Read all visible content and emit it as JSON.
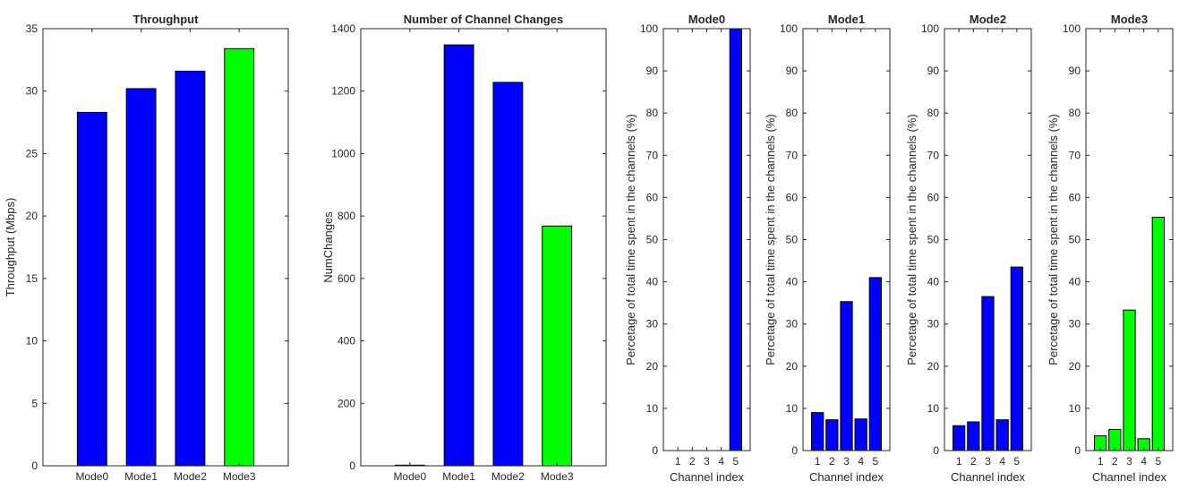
{
  "colors": {
    "blue": "#0000ff",
    "green": "#00ff00",
    "axis": "#262626",
    "bar_edge": "#000000"
  },
  "chart_data": [
    {
      "type": "bar",
      "title": "Throughput",
      "xlabel": "",
      "ylabel": "Throughput (Mbps)",
      "categories": [
        "Mode0",
        "Mode1",
        "Mode2",
        "Mode3"
      ],
      "values": [
        28.3,
        30.2,
        31.6,
        33.4
      ],
      "bar_colors": [
        "blue",
        "blue",
        "blue",
        "green"
      ],
      "ylim": [
        0,
        35
      ],
      "yticks": [
        0,
        5,
        10,
        15,
        20,
        25,
        30,
        35
      ],
      "grid": false
    },
    {
      "type": "bar",
      "title": "Number of Channel Changes",
      "xlabel": "",
      "ylabel": "NumChanges",
      "categories": [
        "Mode0",
        "Mode1",
        "Mode2",
        "Mode3"
      ],
      "values": [
        2,
        1348,
        1228,
        768
      ],
      "bar_colors": [
        "blue",
        "blue",
        "blue",
        "green"
      ],
      "ylim": [
        0,
        1400
      ],
      "yticks": [
        0,
        200,
        400,
        600,
        800,
        1000,
        1200,
        1400
      ],
      "grid": false
    },
    {
      "type": "bar",
      "title": "Mode0",
      "xlabel": "Channel index",
      "ylabel": "Percetage of total time spent in the channels (%)",
      "categories": [
        "1",
        "2",
        "3",
        "4",
        "5"
      ],
      "values": [
        0,
        0,
        0,
        0,
        100
      ],
      "bar_colors": [
        "blue",
        "blue",
        "blue",
        "blue",
        "blue"
      ],
      "ylim": [
        0,
        100
      ],
      "yticks": [
        0,
        10,
        20,
        30,
        40,
        50,
        60,
        70,
        80,
        90,
        100
      ],
      "grid": false
    },
    {
      "type": "bar",
      "title": "Mode1",
      "xlabel": "Channel index",
      "ylabel": "Percetage of total time spent in the channels (%)",
      "categories": [
        "1",
        "2",
        "3",
        "4",
        "5"
      ],
      "values": [
        9,
        7.3,
        35.3,
        7.5,
        41
      ],
      "bar_colors": [
        "blue",
        "blue",
        "blue",
        "blue",
        "blue"
      ],
      "ylim": [
        0,
        100
      ],
      "yticks": [
        0,
        10,
        20,
        30,
        40,
        50,
        60,
        70,
        80,
        90,
        100
      ],
      "grid": false
    },
    {
      "type": "bar",
      "title": "Mode2",
      "xlabel": "Channel index",
      "ylabel": "Percetage of total time spent in the channels (%)",
      "categories": [
        "1",
        "2",
        "3",
        "4",
        "5"
      ],
      "values": [
        5.9,
        6.8,
        36.5,
        7.3,
        43.5
      ],
      "bar_colors": [
        "blue",
        "blue",
        "blue",
        "blue",
        "blue"
      ],
      "ylim": [
        0,
        100
      ],
      "yticks": [
        0,
        10,
        20,
        30,
        40,
        50,
        60,
        70,
        80,
        90,
        100
      ],
      "grid": false
    },
    {
      "type": "bar",
      "title": "Mode3",
      "xlabel": "Channel index",
      "ylabel": "Percetage of total time spent in the channels (%)",
      "categories": [
        "1",
        "2",
        "3",
        "4",
        "5"
      ],
      "values": [
        3.5,
        5,
        33.3,
        2.8,
        55.3
      ],
      "bar_colors": [
        "green",
        "green",
        "green",
        "green",
        "green"
      ],
      "ylim": [
        0,
        100
      ],
      "yticks": [
        0,
        10,
        20,
        30,
        40,
        50,
        60,
        70,
        80,
        90,
        100
      ],
      "grid": false
    }
  ]
}
